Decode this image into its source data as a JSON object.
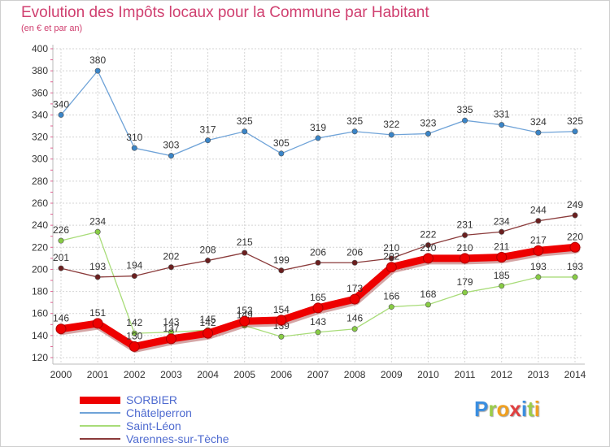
{
  "chart_data": {
    "type": "line",
    "title": "Evolution des Impôts locaux pour la Commune par Habitant",
    "subtitle": "(en € et par an)",
    "x": [
      "2000",
      "2001",
      "2002",
      "2003",
      "2004",
      "2005",
      "2006",
      "2007",
      "2008",
      "2009",
      "2010",
      "2011",
      "2012",
      "2013",
      "2014"
    ],
    "ylim": [
      120,
      400
    ],
    "yticks": [
      120,
      140,
      160,
      180,
      200,
      220,
      240,
      260,
      280,
      300,
      320,
      340,
      360,
      380,
      400
    ],
    "grid": true,
    "legend_position": "bottom-left",
    "series": [
      {
        "name": "SORBIER",
        "color": "#ee0000",
        "thick": true,
        "marker_color": "#ee0000",
        "values": [
          146,
          151,
          130,
          137,
          142,
          153,
          154,
          165,
          173,
          202,
          210,
          210,
          211,
          217,
          220
        ],
        "labels": [
          "146",
          "151",
          "130",
          "137",
          "142",
          "153",
          "154",
          "165",
          "173",
          "202",
          "210",
          "210",
          "211",
          "217",
          "220"
        ]
      },
      {
        "name": "Châtelperron",
        "color": "#6fa3d8",
        "thick": false,
        "marker_color": "#3a85c8",
        "values": [
          340,
          380,
          310,
          303,
          317,
          325,
          305,
          319,
          325,
          322,
          323,
          335,
          331,
          324,
          325
        ],
        "labels": [
          "340",
          "380",
          "310",
          "303",
          "317",
          "325",
          "305",
          "319",
          "325",
          "322",
          "323",
          "335",
          "331",
          "324",
          "325"
        ]
      },
      {
        "name": "Saint-Léon",
        "color": "#a8dc78",
        "thick": false,
        "marker_color": "#88cc44",
        "values": [
          226,
          234,
          142,
          143,
          145,
          149,
          139,
          143,
          146,
          166,
          168,
          179,
          185,
          193,
          193
        ],
        "labels": [
          "226",
          "234",
          "142",
          "143",
          "145",
          "149",
          "139",
          "143",
          "146",
          "166",
          "168",
          "179",
          "185",
          "193",
          "193"
        ]
      },
      {
        "name": "Varennes-sur-Tèche",
        "color": "#8a3a3a",
        "thick": false,
        "marker_color": "#6b1f1f",
        "values": [
          201,
          193,
          194,
          202,
          208,
          215,
          199,
          206,
          206,
          210,
          222,
          231,
          234,
          244,
          249
        ],
        "labels": [
          "201",
          "193",
          "194",
          "202",
          "208",
          "215",
          "199",
          "206",
          "206",
          "210",
          "222",
          "231",
          "234",
          "244",
          "249"
        ]
      }
    ]
  },
  "logo": {
    "letters": [
      {
        "ch": "P",
        "color": "#3a8ee0"
      },
      {
        "ch": "r",
        "color": "#9ccd4a"
      },
      {
        "ch": "o",
        "color": "#f0a020"
      },
      {
        "ch": "x",
        "color": "#e04040"
      },
      {
        "ch": "i",
        "color": "#3a8ee0"
      },
      {
        "ch": "t",
        "color": "#9ccd4a"
      },
      {
        "ch": "i",
        "color": "#f0a020"
      }
    ]
  }
}
